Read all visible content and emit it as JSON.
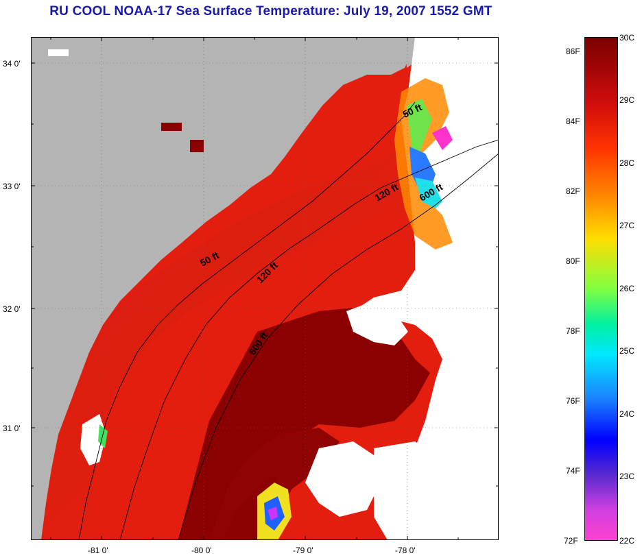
{
  "title": "RU COOL  NOAA-17  Sea Surface Temperature:  July 19, 2007 1552 GMT",
  "lat_labels": [
    "34 0'",
    "33 0'",
    "32 0'",
    "31 0'"
  ],
  "lon_labels": [
    "-81 0'",
    "-80 0'",
    "-79 0'",
    "-78 0'"
  ],
  "contour_labels": {
    "a": "50 ft",
    "b": "120 ft",
    "c": "600 ft",
    "d": "50 ft",
    "e": "120 ft",
    "f": "600 ft"
  },
  "colorbar": {
    "fahrenheit": [
      "86F",
      "84F",
      "82F",
      "80F",
      "78F",
      "76F",
      "74F",
      "72F"
    ],
    "celsius": [
      "30C",
      "29C",
      "28C",
      "27C",
      "26C",
      "25C",
      "24C",
      "23C",
      "22C"
    ]
  },
  "colors": {
    "land": "#b4b4b4",
    "warm": "#8b0000",
    "hot": "#e31a0a",
    "cloud": "#ffffff",
    "title": "#1a1aaa"
  }
}
